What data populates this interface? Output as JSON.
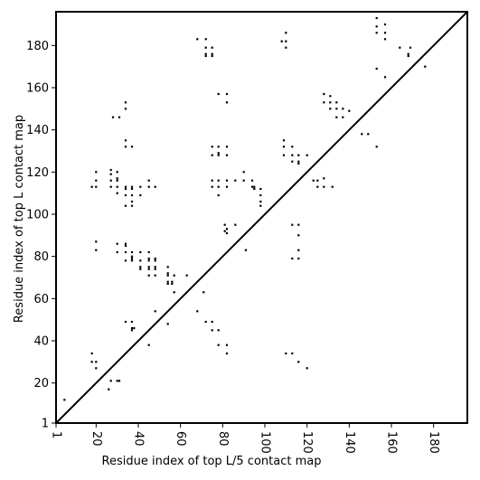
{
  "chart_data": {
    "type": "scatter",
    "xlabel": "Residue index of top L/5 contact map",
    "ylabel": "Residue index of top L contact map",
    "xlim": [
      1,
      196
    ],
    "ylim": [
      1,
      196
    ],
    "xticks": [
      1,
      20,
      40,
      60,
      80,
      100,
      120,
      140,
      160,
      180
    ],
    "yticks": [
      1,
      20,
      40,
      60,
      80,
      100,
      120,
      140,
      160,
      180
    ],
    "diagonal": true,
    "grid": false,
    "lower_points": [
      [
        5,
        12
      ],
      [
        18,
        34
      ],
      [
        18,
        30
      ],
      [
        20,
        27
      ],
      [
        20,
        30
      ],
      [
        27,
        21
      ],
      [
        30,
        21
      ],
      [
        34,
        49
      ],
      [
        37,
        49
      ],
      [
        37,
        46
      ],
      [
        37,
        45
      ],
      [
        38,
        46
      ],
      [
        45,
        38
      ],
      [
        48,
        54
      ],
      [
        54,
        48
      ],
      [
        68,
        54
      ],
      [
        71,
        63
      ],
      [
        72,
        49
      ],
      [
        75,
        49
      ],
      [
        75,
        45
      ],
      [
        78,
        45
      ],
      [
        78,
        38
      ],
      [
        82,
        38
      ],
      [
        82,
        34
      ],
      [
        91,
        83
      ],
      [
        110,
        34
      ],
      [
        113,
        34
      ],
      [
        113,
        79
      ],
      [
        113,
        95
      ],
      [
        116,
        79
      ],
      [
        116,
        83
      ],
      [
        116,
        90
      ],
      [
        116,
        95
      ],
      [
        116,
        30
      ],
      [
        120,
        27
      ],
      [
        153,
        132
      ],
      [
        153,
        169
      ],
      [
        157,
        165
      ],
      [
        81,
        92
      ],
      [
        81,
        95
      ],
      [
        82,
        91
      ],
      [
        82,
        93
      ],
      [
        86,
        95
      ],
      [
        26,
        17
      ],
      [
        31,
        21
      ]
    ],
    "upper_points": [
      [
        18,
        113
      ],
      [
        20,
        113
      ],
      [
        20,
        116
      ],
      [
        20,
        120
      ],
      [
        20,
        83
      ],
      [
        20,
        87
      ],
      [
        27,
        113
      ],
      [
        27,
        116
      ],
      [
        27,
        119
      ],
      [
        27,
        121
      ],
      [
        28,
        146
      ],
      [
        30,
        110
      ],
      [
        30,
        113
      ],
      [
        30,
        116
      ],
      [
        30,
        117
      ],
      [
        30,
        120
      ],
      [
        30,
        82
      ],
      [
        30,
        86
      ],
      [
        31,
        146
      ],
      [
        34,
        104
      ],
      [
        34,
        109
      ],
      [
        34,
        112
      ],
      [
        34,
        113
      ],
      [
        34,
        132
      ],
      [
        34,
        135
      ],
      [
        34,
        150
      ],
      [
        34,
        153
      ],
      [
        34,
        78
      ],
      [
        34,
        82
      ],
      [
        34,
        85
      ],
      [
        34,
        86
      ],
      [
        37,
        104
      ],
      [
        37,
        106
      ],
      [
        37,
        109
      ],
      [
        37,
        112
      ],
      [
        37,
        113
      ],
      [
        37,
        132
      ],
      [
        37,
        78
      ],
      [
        37,
        79
      ],
      [
        37,
        80
      ],
      [
        37,
        82
      ],
      [
        41,
        109
      ],
      [
        41,
        113
      ],
      [
        41,
        74
      ],
      [
        41,
        75
      ],
      [
        41,
        78
      ],
      [
        41,
        82
      ],
      [
        45,
        113
      ],
      [
        45,
        116
      ],
      [
        45,
        71
      ],
      [
        45,
        74
      ],
      [
        45,
        75
      ],
      [
        45,
        78
      ],
      [
        45,
        79
      ],
      [
        45,
        82
      ],
      [
        48,
        113
      ],
      [
        48,
        71
      ],
      [
        48,
        74
      ],
      [
        48,
        75
      ],
      [
        48,
        78
      ],
      [
        48,
        79
      ],
      [
        54,
        67
      ],
      [
        54,
        68
      ],
      [
        54,
        71
      ],
      [
        54,
        72
      ],
      [
        54,
        75
      ],
      [
        56,
        67
      ],
      [
        56,
        68
      ],
      [
        57,
        63
      ],
      [
        57,
        71
      ],
      [
        63,
        71
      ],
      [
        68,
        183
      ],
      [
        72,
        175
      ],
      [
        72,
        176
      ],
      [
        72,
        179
      ],
      [
        72,
        183
      ],
      [
        75,
        175
      ],
      [
        75,
        176
      ],
      [
        75,
        179
      ],
      [
        75,
        113
      ],
      [
        75,
        116
      ],
      [
        75,
        128
      ],
      [
        75,
        132
      ],
      [
        78,
        109
      ],
      [
        78,
        113
      ],
      [
        78,
        116
      ],
      [
        78,
        128
      ],
      [
        78,
        129
      ],
      [
        78,
        132
      ],
      [
        78,
        157
      ],
      [
        82,
        113
      ],
      [
        82,
        116
      ],
      [
        82,
        128
      ],
      [
        82,
        132
      ],
      [
        82,
        153
      ],
      [
        82,
        157
      ],
      [
        86,
        116
      ],
      [
        90,
        116
      ],
      [
        90,
        120
      ],
      [
        94,
        113
      ],
      [
        94,
        116
      ],
      [
        95,
        112
      ],
      [
        95,
        113
      ],
      [
        98,
        104
      ],
      [
        98,
        106
      ],
      [
        98,
        109
      ],
      [
        98,
        112
      ],
      [
        108,
        182
      ],
      [
        110,
        179
      ],
      [
        110,
        182
      ],
      [
        110,
        186
      ],
      [
        109,
        128
      ],
      [
        109,
        132
      ],
      [
        109,
        135
      ],
      [
        113,
        125
      ],
      [
        113,
        128
      ],
      [
        113,
        132
      ],
      [
        116,
        124
      ],
      [
        116,
        125
      ],
      [
        116,
        128
      ],
      [
        120,
        128
      ],
      [
        123,
        116
      ],
      [
        125,
        113
      ],
      [
        125,
        116
      ],
      [
        128,
        113
      ],
      [
        128,
        117
      ],
      [
        132,
        113
      ],
      [
        128,
        153
      ],
      [
        128,
        157
      ],
      [
        131,
        150
      ],
      [
        131,
        153
      ],
      [
        131,
        156
      ],
      [
        134,
        146
      ],
      [
        134,
        150
      ],
      [
        134,
        153
      ],
      [
        137,
        146
      ],
      [
        137,
        150
      ],
      [
        140,
        149
      ],
      [
        146,
        138
      ],
      [
        149,
        138
      ],
      [
        153,
        186
      ],
      [
        153,
        189
      ],
      [
        153,
        193
      ],
      [
        157,
        183
      ],
      [
        157,
        186
      ],
      [
        157,
        190
      ],
      [
        164,
        179
      ],
      [
        168,
        175
      ],
      [
        168,
        176
      ],
      [
        169,
        179
      ],
      [
        176,
        170
      ]
    ]
  }
}
